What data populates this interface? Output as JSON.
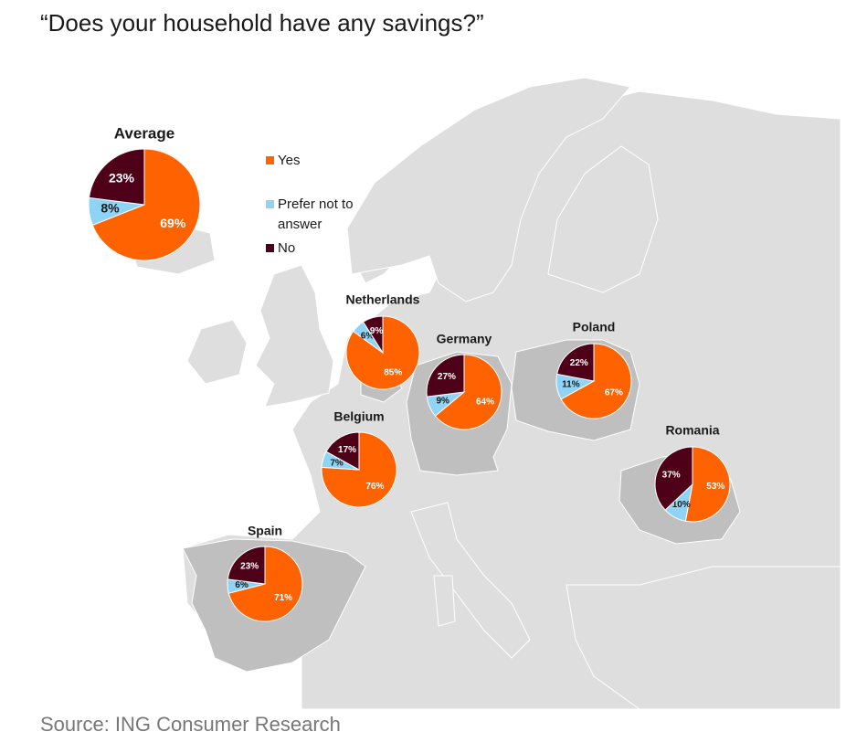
{
  "title": "“Does your household have any savings?”",
  "source": "Source: ING Consumer Research",
  "colors": {
    "yes": "#ff6200",
    "prefer": "#8fd4f5",
    "no": "#4d0018",
    "sea": "#ffffff",
    "land": "#dedede",
    "highlight": "#bfbfbf"
  },
  "legend": [
    {
      "key": "yes",
      "label": "Yes"
    },
    {
      "key": "prefer",
      "label": "Prefer not to answer"
    },
    {
      "key": "no",
      "label": "No"
    }
  ],
  "chart_data": {
    "type": "pie",
    "series_order": [
      "yes",
      "prefer",
      "no"
    ],
    "pies": [
      {
        "name": "Average",
        "yes": 69,
        "prefer": 8,
        "no": 23
      },
      {
        "name": "Netherlands",
        "yes": 85,
        "prefer": 6,
        "no": 9
      },
      {
        "name": "Germany",
        "yes": 64,
        "prefer": 9,
        "no": 27
      },
      {
        "name": "Poland",
        "yes": 67,
        "prefer": 11,
        "no": 22
      },
      {
        "name": "Belgium",
        "yes": 76,
        "prefer": 7,
        "no": 17
      },
      {
        "name": "Romania",
        "yes": 53,
        "prefer": 10,
        "no": 37
      },
      {
        "name": "Spain",
        "yes": 71,
        "prefer": 6,
        "no": 23
      }
    ]
  }
}
